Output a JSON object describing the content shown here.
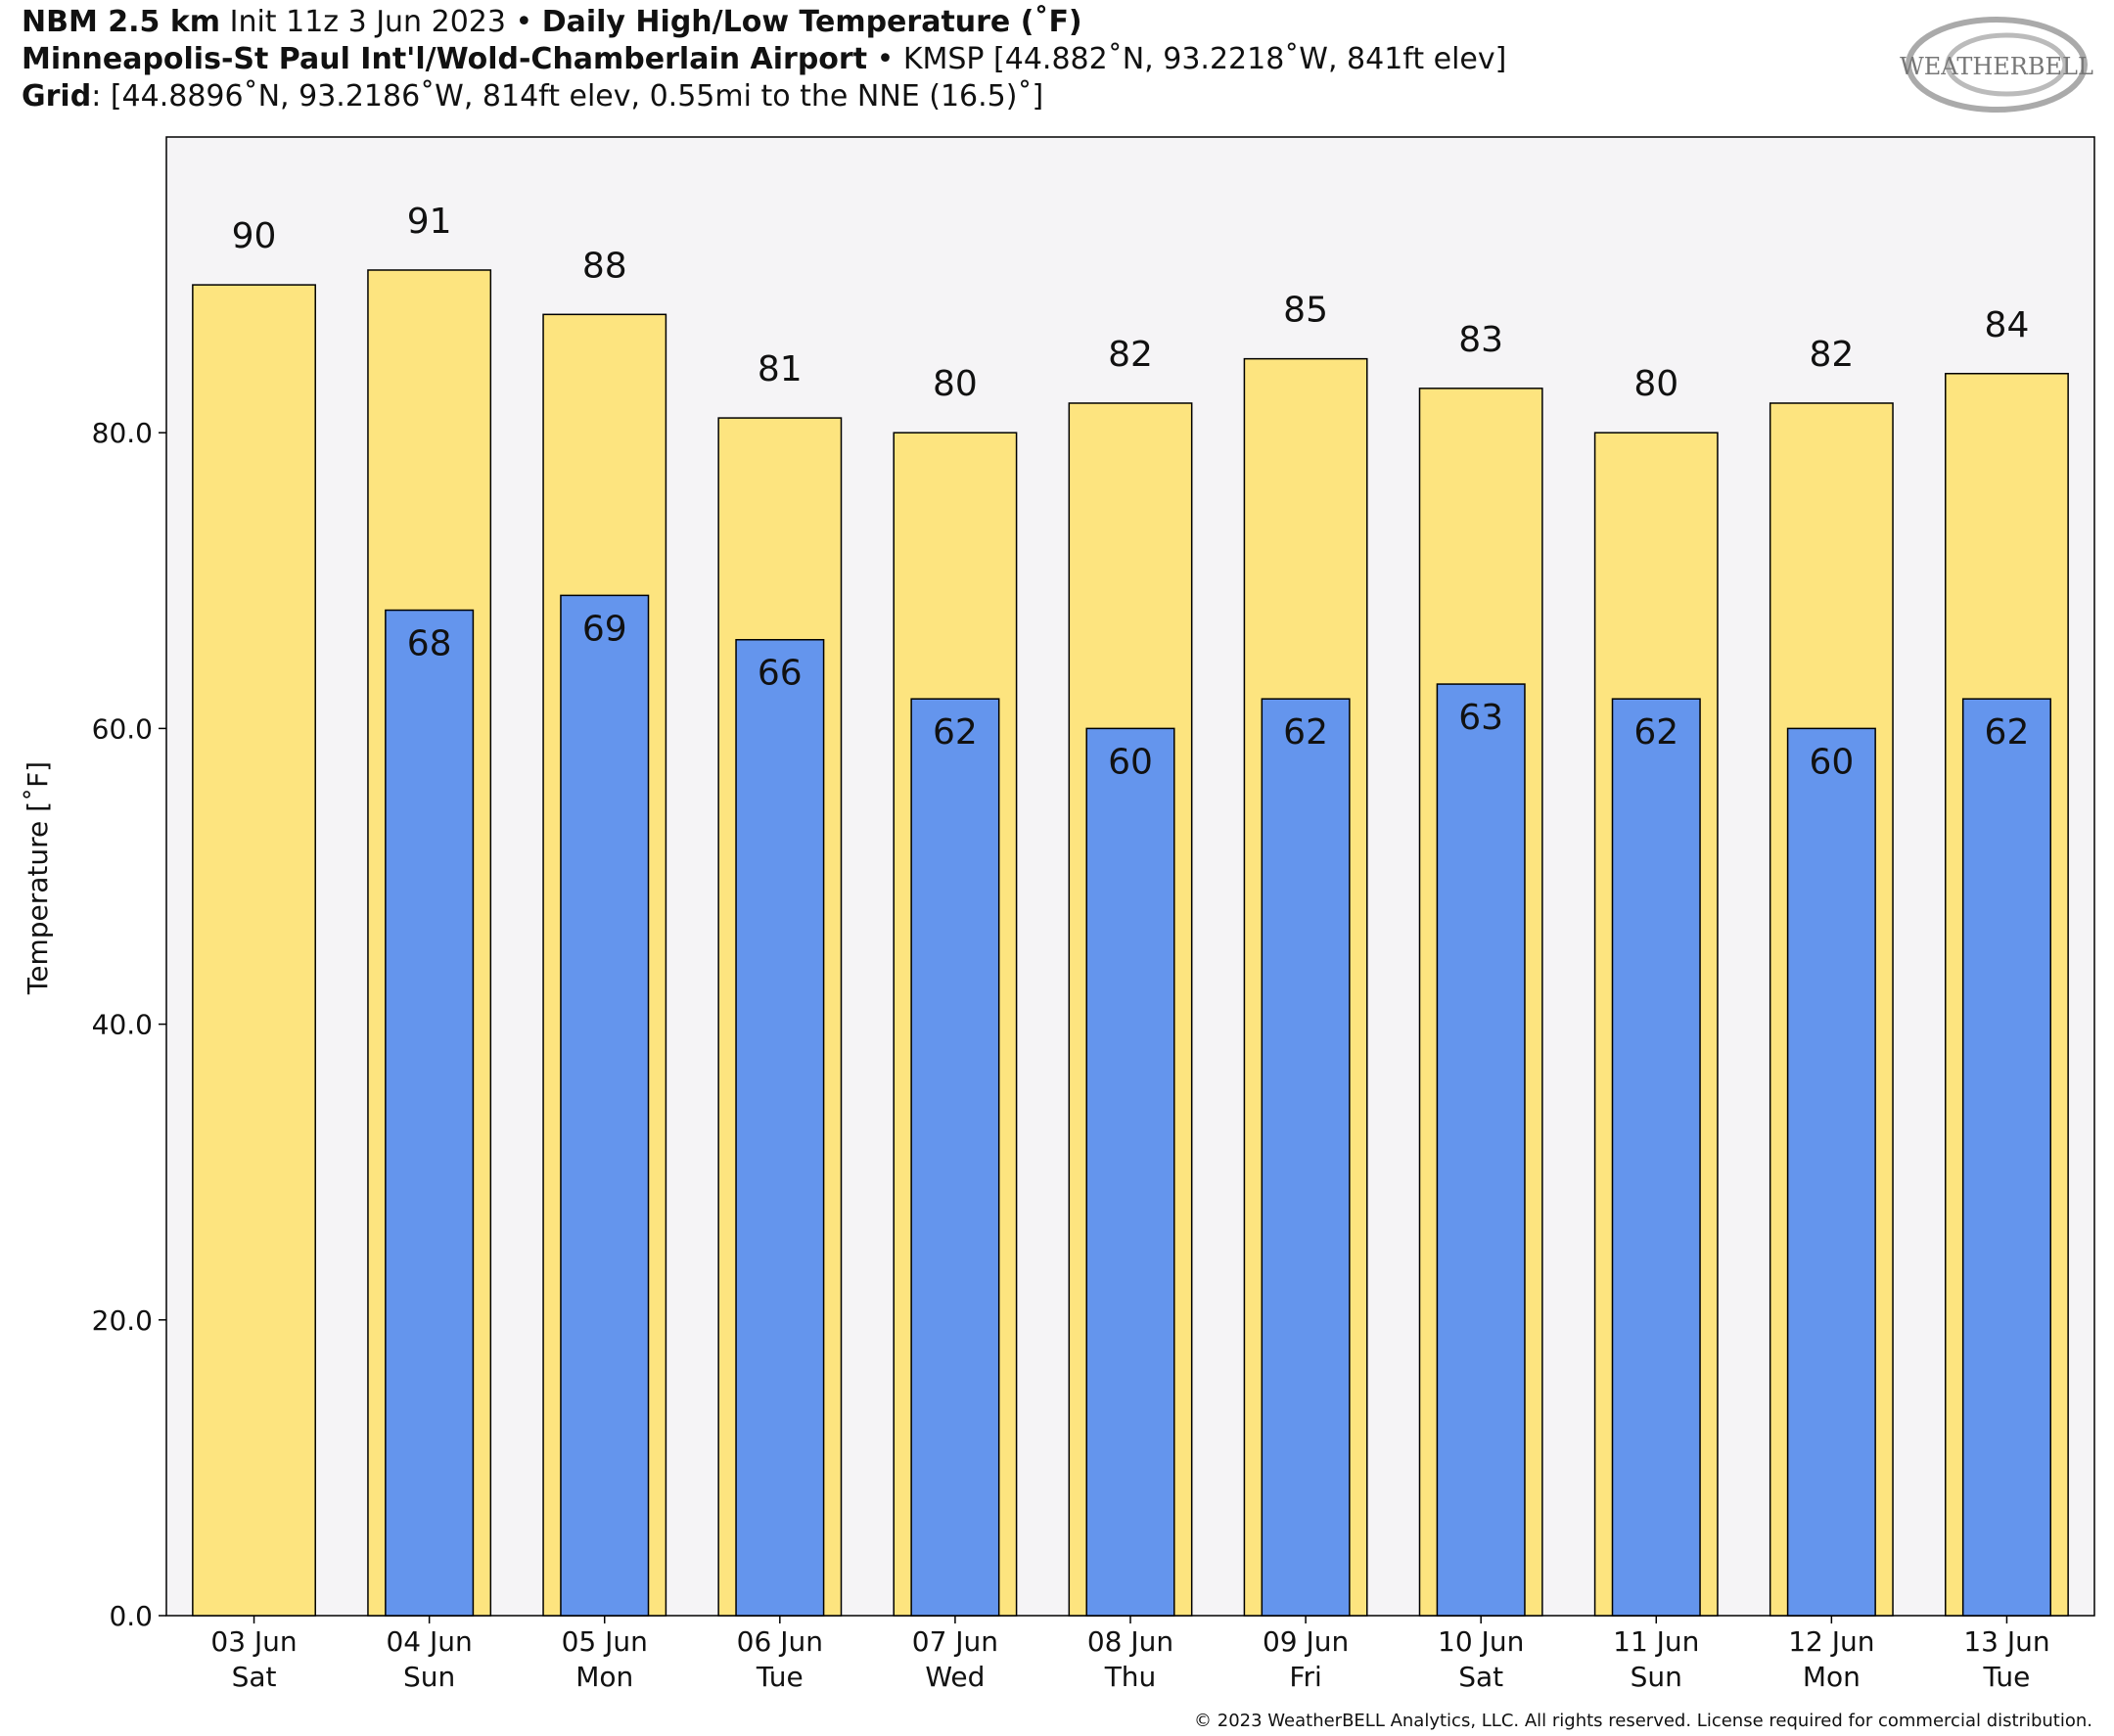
{
  "chart_data": {
    "type": "bar",
    "title_lines": [
      [
        {
          "text": "NBM 2.5 km",
          "bold": true
        },
        {
          "text": " Init 11z 3 Jun 2023 • ",
          "bold": false
        },
        {
          "text": "Daily High/Low Temperature (˚F)",
          "bold": true
        }
      ],
      [
        {
          "text": "Minneapolis-St Paul Int'l/Wold-Chamberlain Airport",
          "bold": true
        },
        {
          "text": " • KMSP [44.882˚N, 93.2218˚W, 841ft elev]",
          "bold": false
        }
      ],
      [
        {
          "text": "Grid",
          "bold": true
        },
        {
          "text": ": [44.8896˚N, 93.2186˚W, 814ft elev, 0.55mi to the NNE (16.5)˚]",
          "bold": false
        }
      ]
    ],
    "logo": "WEATHERBELL",
    "ylabel": "Temperature [˚F]",
    "copyright": "© 2023 WeatherBELL Analytics, LLC. All rights reserved. License required for commercial distribution.",
    "categories": [
      "03 Jun",
      "04 Jun",
      "05 Jun",
      "06 Jun",
      "07 Jun",
      "08 Jun",
      "09 Jun",
      "10 Jun",
      "11 Jun",
      "12 Jun",
      "13 Jun"
    ],
    "weekdays": [
      "Sat",
      "Sun",
      "Mon",
      "Tue",
      "Wed",
      "Thu",
      "Fri",
      "Sat",
      "Sun",
      "Mon",
      "Tue"
    ],
    "series": [
      {
        "name": "High",
        "color": "#fde47f",
        "values": [
          90,
          91,
          88,
          81,
          80,
          82,
          85,
          83,
          80,
          82,
          84
        ]
      },
      {
        "name": "Low",
        "color": "#6495ed",
        "values": [
          null,
          68,
          69,
          66,
          62,
          60,
          62,
          63,
          62,
          60,
          62
        ]
      }
    ],
    "ylim": [
      0,
      100
    ],
    "yticks": [
      {
        "value": 0,
        "label": "0.0"
      },
      {
        "value": 20,
        "label": "20.0"
      },
      {
        "value": 40,
        "label": "40.0"
      },
      {
        "value": 60,
        "label": "60.0"
      },
      {
        "value": 80,
        "label": "80.0"
      }
    ]
  }
}
